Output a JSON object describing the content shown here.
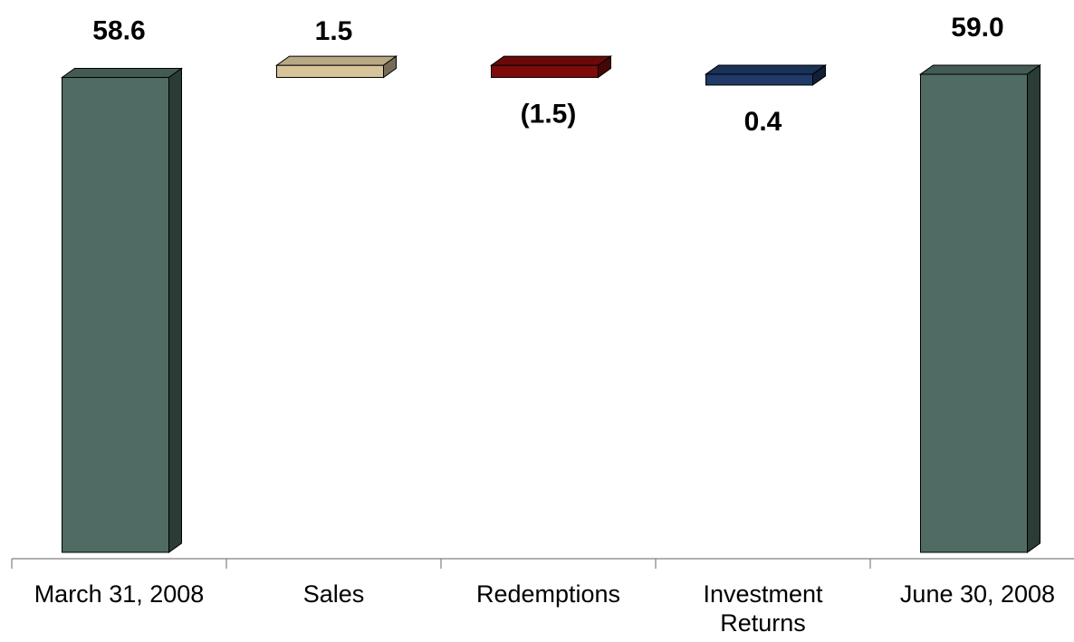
{
  "chart_data": {
    "type": "bar",
    "subtype": "waterfall-3d",
    "title": "",
    "xlabel": "",
    "ylabel": "",
    "categories": [
      "March 31, 2008",
      "Sales",
      "Redemptions",
      "Investment Returns",
      "June 30, 2008"
    ],
    "category_lines": [
      [
        "March 31, 2008"
      ],
      [
        "Sales"
      ],
      [
        "Redemptions"
      ],
      [
        "Investment",
        "Returns"
      ],
      [
        "June 30, 2008"
      ]
    ],
    "values": [
      58.6,
      1.5,
      -1.5,
      0.4,
      59.0
    ],
    "value_labels": [
      "58.6",
      "1.5",
      "(1.5)",
      "0.4",
      "59.0"
    ],
    "colors": {
      "total": "#4f6b63",
      "sales": "#d7c49a",
      "redemptions": "#7d0b0b",
      "investment_returns": "#1f3a68"
    },
    "grid": false,
    "legend": "none"
  }
}
